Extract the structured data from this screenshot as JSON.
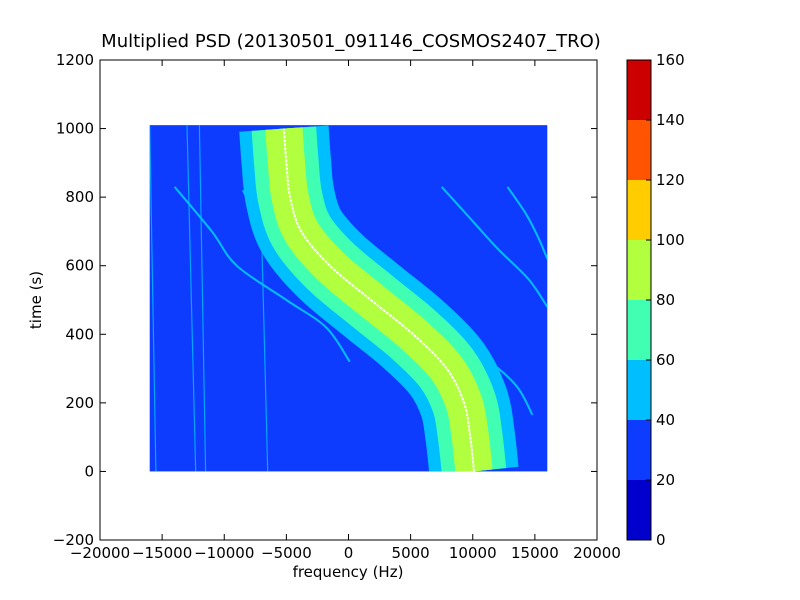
{
  "chart_data": {
    "type": "heatmap",
    "title": "Multiplied PSD (20130501_091146_COSMOS2407_TRO)",
    "xlabel": "frequency (Hz)",
    "ylabel": "time (s)",
    "xlim": [
      -20000,
      20000
    ],
    "ylim": [
      -200,
      1200
    ],
    "xticks": [
      -20000,
      -15000,
      -10000,
      -5000,
      0,
      5000,
      10000,
      15000,
      20000
    ],
    "yticks": [
      -200,
      0,
      200,
      400,
      600,
      800,
      1000,
      1200
    ],
    "data_extent": {
      "x": [
        -16000,
        16000
      ],
      "y": [
        0,
        1010
      ]
    },
    "background_level": 25,
    "main_curve": {
      "description": "dominant Doppler S-curve",
      "points": [
        {
          "t": 0,
          "f": 10100
        },
        {
          "t": 100,
          "f": 9800
        },
        {
          "t": 200,
          "f": 9300
        },
        {
          "t": 300,
          "f": 7900
        },
        {
          "t": 400,
          "f": 5200
        },
        {
          "t": 500,
          "f": 1800
        },
        {
          "t": 600,
          "f": -1500
        },
        {
          "t": 700,
          "f": -3800
        },
        {
          "t": 800,
          "f": -4700
        },
        {
          "t": 900,
          "f": -5000
        },
        {
          "t": 1000,
          "f": -5200
        }
      ],
      "band_layers": [
        {
          "half_width": 3600,
          "level": 45
        },
        {
          "half_width": 2600,
          "level": 65
        },
        {
          "half_width": 1500,
          "level": 85
        },
        {
          "half_width": 500,
          "level": 95
        }
      ],
      "center_line_color": "#ffffff"
    },
    "secondary_curves": [
      {
        "level": 55,
        "points": [
          {
            "t": 830,
            "f": -14000
          },
          {
            "t": 700,
            "f": -11000
          },
          {
            "t": 600,
            "f": -9000
          },
          {
            "t": 500,
            "f": -5000
          },
          {
            "t": 420,
            "f": -1800
          },
          {
            "t": 320,
            "f": 100
          }
        ]
      },
      {
        "level": 55,
        "points": [
          {
            "t": 820,
            "f": -8500
          },
          {
            "t": 720,
            "f": -7000
          },
          {
            "t": 620,
            "f": -4500
          },
          {
            "t": 560,
            "f": -2000
          },
          {
            "t": 500,
            "f": 2000
          },
          {
            "t": 420,
            "f": 7000
          },
          {
            "t": 330,
            "f": 11000
          },
          {
            "t": 250,
            "f": 13500
          },
          {
            "t": 165,
            "f": 14800
          }
        ]
      },
      {
        "level": 55,
        "points": [
          {
            "t": 830,
            "f": 7500
          },
          {
            "t": 750,
            "f": 9500
          },
          {
            "t": 650,
            "f": 12000
          },
          {
            "t": 560,
            "f": 14500
          },
          {
            "t": 480,
            "f": 16000
          }
        ]
      },
      {
        "level": 55,
        "points": [
          {
            "t": 830,
            "f": 12800
          },
          {
            "t": 750,
            "f": 14300
          },
          {
            "t": 680,
            "f": 15300
          },
          {
            "t": 620,
            "f": 16000
          }
        ]
      }
    ],
    "vertical_lines": [
      {
        "level": 45,
        "points": [
          {
            "t": 1010,
            "f": -16000
          },
          {
            "t": 0,
            "f": -15500
          }
        ]
      },
      {
        "level": 45,
        "points": [
          {
            "t": 1010,
            "f": -13000
          },
          {
            "t": 0,
            "f": -12300
          }
        ]
      },
      {
        "level": 45,
        "points": [
          {
            "t": 1010,
            "f": -12000
          },
          {
            "t": 0,
            "f": -11500
          }
        ]
      },
      {
        "level": 45,
        "points": [
          {
            "t": 700,
            "f": -7000
          },
          {
            "t": 0,
            "f": -6500
          }
        ]
      }
    ],
    "colorbar": {
      "min": 0,
      "max": 160,
      "ticks": [
        0,
        20,
        40,
        60,
        80,
        100,
        120,
        140,
        160
      ],
      "levels": [
        {
          "from": 0,
          "to": 20,
          "color": "#0000cc"
        },
        {
          "from": 20,
          "to": 40,
          "color": "#0d3cff"
        },
        {
          "from": 40,
          "to": 60,
          "color": "#00bfff"
        },
        {
          "from": 60,
          "to": 80,
          "color": "#40ffb2"
        },
        {
          "from": 80,
          "to": 100,
          "color": "#b2ff40"
        },
        {
          "from": 100,
          "to": 120,
          "color": "#ffcc00"
        },
        {
          "from": 120,
          "to": 140,
          "color": "#ff5500"
        },
        {
          "from": 140,
          "to": 160,
          "color": "#cc0000"
        }
      ]
    }
  }
}
